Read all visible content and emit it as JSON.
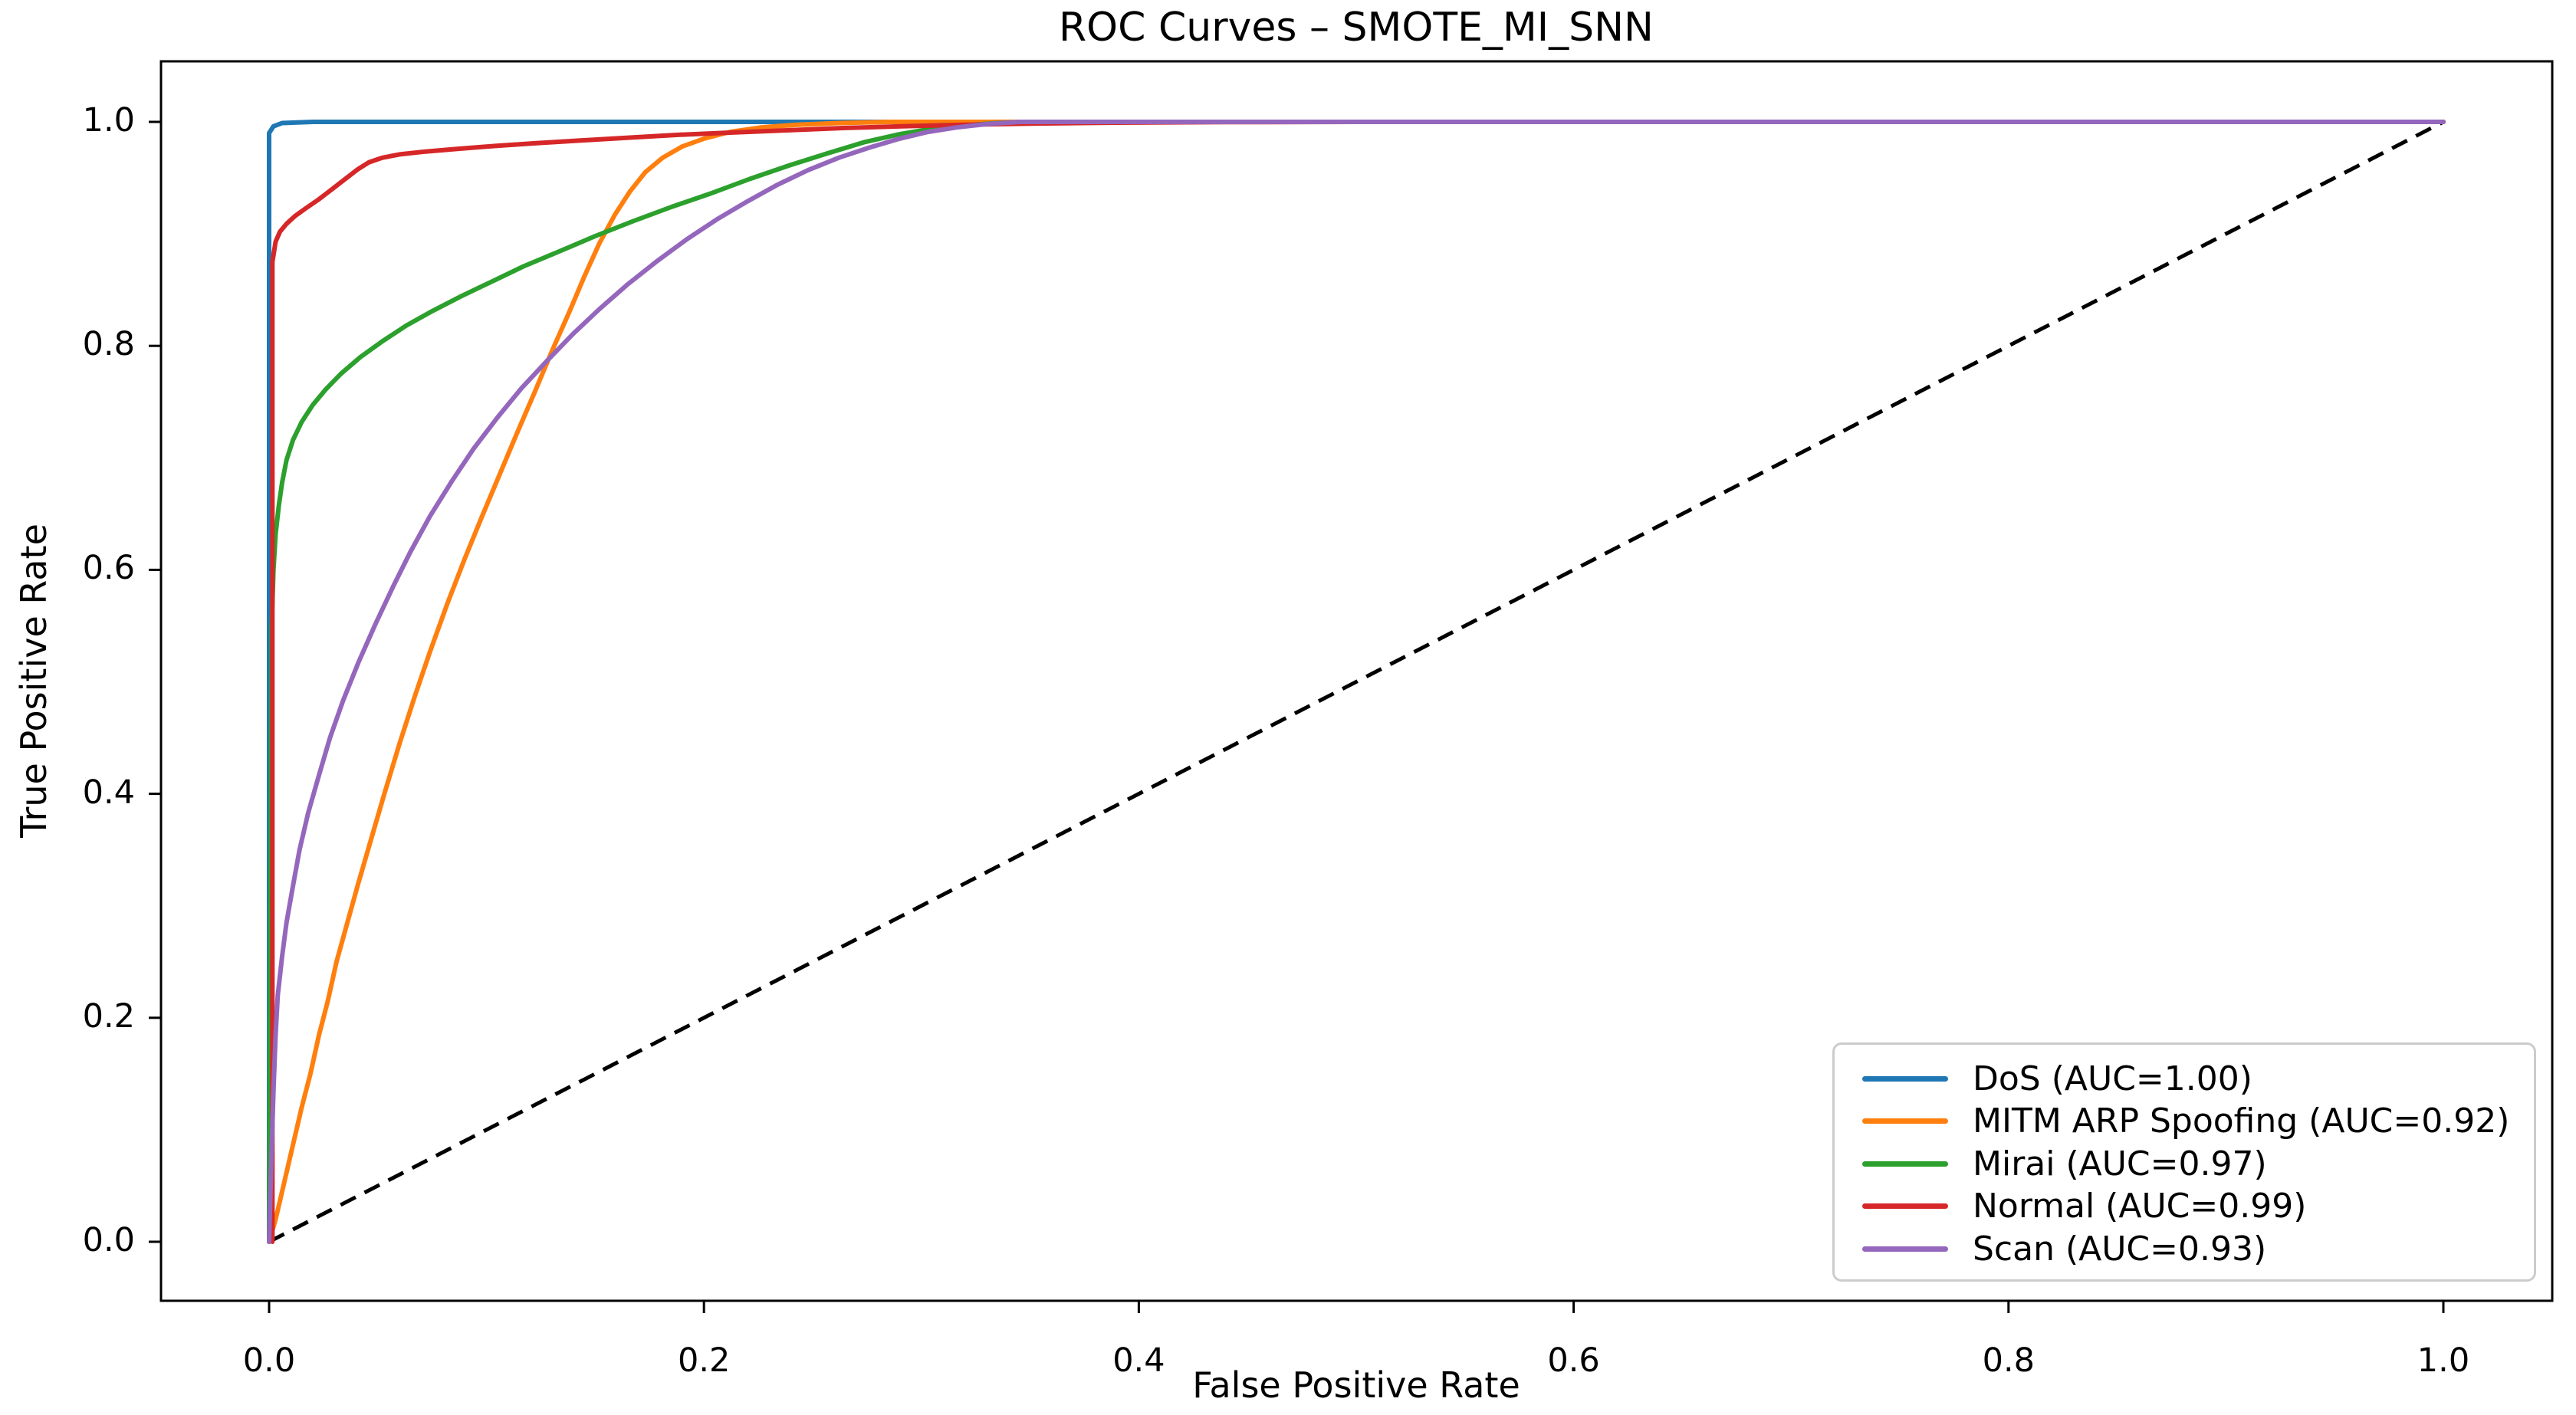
{
  "chart_data": {
    "type": "line",
    "title": "ROC Curves – SMOTE_MI_SNN",
    "xlabel": "False Positive Rate",
    "ylabel": "True Positive Rate",
    "xlim": [
      -0.05,
      1.05
    ],
    "ylim": [
      -0.05,
      1.05
    ],
    "x_ticks": [
      "0.0",
      "0.2",
      "0.4",
      "0.6",
      "0.8",
      "1.0"
    ],
    "y_ticks": [
      "0.0",
      "0.2",
      "0.4",
      "0.6",
      "0.8",
      "1.0"
    ],
    "grid": false,
    "legend_position": "lower right",
    "reference_line": {
      "name": "chance-diagonal",
      "style": "dashed",
      "color": "#000000",
      "from": [
        0,
        0
      ],
      "to": [
        1,
        1
      ]
    },
    "series": [
      {
        "class_name": "DoS",
        "auc": "1.00",
        "name": "DoS (AUC=1.00)",
        "color": "#1f77b4",
        "points": [
          [
            0,
            0
          ],
          [
            0,
            0.99
          ],
          [
            0.002,
            0.996
          ],
          [
            0.006,
            0.999
          ],
          [
            0.02,
            1
          ],
          [
            1,
            1
          ]
        ]
      },
      {
        "class_name": "MITM ARP Spoofing",
        "auc": "0.92",
        "name": "MITM ARP Spoofing (AUC=0.92)",
        "color": "#ff7f0e",
        "points": [
          [
            0,
            0
          ],
          [
            0.003,
            0.02
          ],
          [
            0.006,
            0.045
          ],
          [
            0.009,
            0.07
          ],
          [
            0.012,
            0.095
          ],
          [
            0.015,
            0.12
          ],
          [
            0.019,
            0.15
          ],
          [
            0.023,
            0.185
          ],
          [
            0.027,
            0.215
          ],
          [
            0.031,
            0.25
          ],
          [
            0.036,
            0.285
          ],
          [
            0.041,
            0.32
          ],
          [
            0.047,
            0.36
          ],
          [
            0.053,
            0.4
          ],
          [
            0.06,
            0.445
          ],
          [
            0.067,
            0.487
          ],
          [
            0.074,
            0.527
          ],
          [
            0.082,
            0.57
          ],
          [
            0.09,
            0.61
          ],
          [
            0.098,
            0.648
          ],
          [
            0.106,
            0.685
          ],
          [
            0.114,
            0.722
          ],
          [
            0.122,
            0.758
          ],
          [
            0.13,
            0.795
          ],
          [
            0.138,
            0.83
          ],
          [
            0.145,
            0.862
          ],
          [
            0.152,
            0.892
          ],
          [
            0.159,
            0.917
          ],
          [
            0.166,
            0.938
          ],
          [
            0.173,
            0.955
          ],
          [
            0.181,
            0.968
          ],
          [
            0.19,
            0.978
          ],
          [
            0.2,
            0.985
          ],
          [
            0.212,
            0.991
          ],
          [
            0.226,
            0.995
          ],
          [
            0.243,
            0.9975
          ],
          [
            0.262,
            0.999
          ],
          [
            0.285,
            1
          ],
          [
            1,
            1
          ]
        ]
      },
      {
        "class_name": "Mirai",
        "auc": "0.97",
        "name": "Mirai (AUC=0.97)",
        "color": "#2ca02c",
        "points": [
          [
            0,
            0
          ],
          [
            0.001,
            0.45
          ],
          [
            0.0012,
            0.55
          ],
          [
            0.002,
            0.6
          ],
          [
            0.003,
            0.632
          ],
          [
            0.0045,
            0.658
          ],
          [
            0.006,
            0.678
          ],
          [
            0.008,
            0.698
          ],
          [
            0.011,
            0.716
          ],
          [
            0.015,
            0.732
          ],
          [
            0.02,
            0.747
          ],
          [
            0.026,
            0.761
          ],
          [
            0.033,
            0.775
          ],
          [
            0.042,
            0.79
          ],
          [
            0.052,
            0.804
          ],
          [
            0.063,
            0.818
          ],
          [
            0.075,
            0.831
          ],
          [
            0.088,
            0.844
          ],
          [
            0.102,
            0.857
          ],
          [
            0.117,
            0.871
          ],
          [
            0.133,
            0.884
          ],
          [
            0.15,
            0.898
          ],
          [
            0.167,
            0.911
          ],
          [
            0.185,
            0.924
          ],
          [
            0.203,
            0.936
          ],
          [
            0.221,
            0.949
          ],
          [
            0.239,
            0.961
          ],
          [
            0.257,
            0.972
          ],
          [
            0.274,
            0.982
          ],
          [
            0.29,
            0.989
          ],
          [
            0.305,
            0.994
          ],
          [
            0.32,
            0.997
          ],
          [
            0.335,
            0.999
          ],
          [
            0.35,
            1
          ],
          [
            1,
            1
          ]
        ]
      },
      {
        "class_name": "Normal",
        "auc": "0.99",
        "name": "Normal (AUC=0.99)",
        "color": "#d62728",
        "points": [
          [
            0.0015,
            0
          ],
          [
            0.0015,
            0.875
          ],
          [
            0.003,
            0.893
          ],
          [
            0.005,
            0.902
          ],
          [
            0.008,
            0.909
          ],
          [
            0.012,
            0.916
          ],
          [
            0.017,
            0.923
          ],
          [
            0.023,
            0.931
          ],
          [
            0.029,
            0.94
          ],
          [
            0.035,
            0.949
          ],
          [
            0.041,
            0.958
          ],
          [
            0.046,
            0.964
          ],
          [
            0.052,
            0.968
          ],
          [
            0.06,
            0.971
          ],
          [
            0.072,
            0.9735
          ],
          [
            0.087,
            0.976
          ],
          [
            0.104,
            0.9785
          ],
          [
            0.123,
            0.981
          ],
          [
            0.144,
            0.9835
          ],
          [
            0.166,
            0.986
          ],
          [
            0.189,
            0.9885
          ],
          [
            0.213,
            0.9905
          ],
          [
            0.238,
            0.9925
          ],
          [
            0.264,
            0.9945
          ],
          [
            0.291,
            0.996
          ],
          [
            0.319,
            0.9975
          ],
          [
            0.35,
            0.9985
          ],
          [
            0.39,
            0.9993
          ],
          [
            0.44,
            0.9998
          ],
          [
            0.5,
            1
          ],
          [
            1,
            1
          ]
        ]
      },
      {
        "class_name": "Scan",
        "auc": "0.93",
        "name": "Scan (AUC=0.93)",
        "color": "#9467bd",
        "points": [
          [
            0,
            0
          ],
          [
            0.001,
            0.07
          ],
          [
            0.002,
            0.135
          ],
          [
            0.003,
            0.185
          ],
          [
            0.004,
            0.22
          ],
          [
            0.006,
            0.255
          ],
          [
            0.008,
            0.285
          ],
          [
            0.011,
            0.318
          ],
          [
            0.014,
            0.35
          ],
          [
            0.018,
            0.383
          ],
          [
            0.023,
            0.417
          ],
          [
            0.028,
            0.45
          ],
          [
            0.034,
            0.483
          ],
          [
            0.041,
            0.517
          ],
          [
            0.049,
            0.552
          ],
          [
            0.057,
            0.585
          ],
          [
            0.065,
            0.616
          ],
          [
            0.074,
            0.648
          ],
          [
            0.084,
            0.679
          ],
          [
            0.094,
            0.708
          ],
          [
            0.105,
            0.736
          ],
          [
            0.116,
            0.762
          ],
          [
            0.128,
            0.787
          ],
          [
            0.14,
            0.811
          ],
          [
            0.152,
            0.833
          ],
          [
            0.165,
            0.855
          ],
          [
            0.178,
            0.875
          ],
          [
            0.192,
            0.895
          ],
          [
            0.206,
            0.913
          ],
          [
            0.22,
            0.929
          ],
          [
            0.234,
            0.944
          ],
          [
            0.248,
            0.957
          ],
          [
            0.262,
            0.968
          ],
          [
            0.276,
            0.977
          ],
          [
            0.29,
            0.985
          ],
          [
            0.303,
            0.991
          ],
          [
            0.316,
            0.995
          ],
          [
            0.33,
            0.998
          ],
          [
            0.345,
            1
          ],
          [
            1,
            1
          ]
        ]
      }
    ]
  }
}
